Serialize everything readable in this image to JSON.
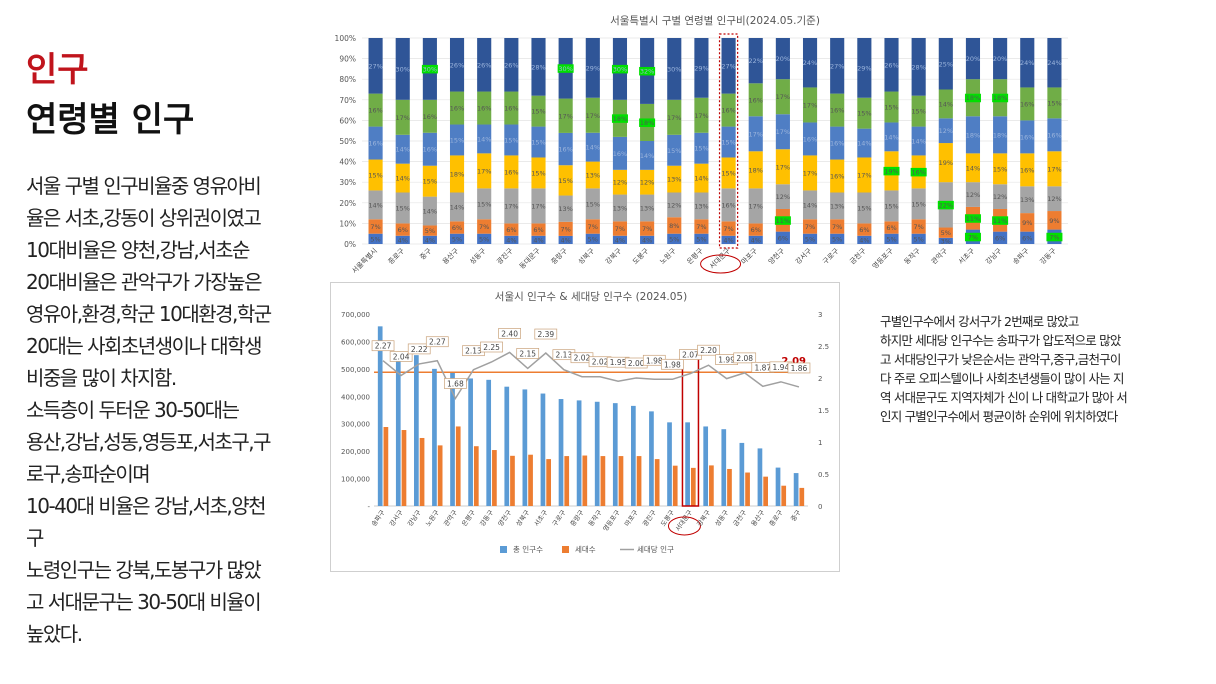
{
  "page": {
    "title": "인구",
    "subtitle": "연령별 인구",
    "left_lines": [
      "서울 구별 인구비율중 영유아비",
      "율은 서초,강동이 상위권이였고",
      "10대비율은 양천,강남,서초순",
      "20대비율은 관악구가 가장높은",
      "영유아,환경,학군 10대환경,학군",
      "20대는 사회초년생이나 대학생",
      "비중을 많이 차지함.",
      "소득층이 두터운 30-50대는",
      "용산,강남,성동,영등포,서초구,구",
      "로구,송파순이며",
      "10-40대 비율은 강남,서초,양천",
      "구",
      "노령인구는 강북,도봉구가 많았",
      "고 서대문구는 30-50대 비율이",
      "높았다."
    ],
    "right_lines": [
      "구별인구수에서 강서구가 2번째로 많았고",
      "하지만 세대당 인구수는 송파구가 압도적으로 많았",
      "고 서대당인구가 낮은순서는 관악구,중구,금천구이",
      "다 주로 오피스텔이나 사회초년생들이 많이 사는 지",
      "역 서대문구도 지역자체가 신이 나 대학교가 많아 서",
      "인지 구별인구수에서 평균이하 순위에 위치하였다"
    ]
  },
  "colors": {
    "age_0_9": "#4472c4",
    "age_10s": "#ed7d31",
    "age_20s": "#a5a5a5",
    "age_30s": "#ffc000",
    "age_40s": "#4f7ec4",
    "age_50s": "#70ad47",
    "age_60plus": "#2f5597",
    "highlight_label": "#00e000",
    "highlight_box": "#c00000",
    "bar_pop": "#5b9bd5",
    "bar_household": "#ed7d31",
    "line_per_household": "#a0a0a0"
  },
  "chart_data": [
    {
      "type": "bar",
      "stacked": true,
      "title": "서울특별시 구별 연령별 인구비(2024.05.기준)",
      "y_tick_labels": [
        "0%",
        "10%",
        "20%",
        "30%",
        "40%",
        "50%",
        "60%",
        "70%",
        "80%",
        "90%",
        "100%"
      ],
      "ylim": [
        0,
        100
      ],
      "categories": [
        "서울특별시",
        "종로구",
        "중구",
        "용산구",
        "성동구",
        "광진구",
        "동대문구",
        "중랑구",
        "성북구",
        "강북구",
        "도봉구",
        "노원구",
        "은평구",
        "서대문구",
        "마포구",
        "양천구",
        "강서구",
        "구로구",
        "금천구",
        "영등포구",
        "동작구",
        "관악구",
        "서초구",
        "강남구",
        "송파구",
        "강동구"
      ],
      "highlight_category": "서대문구",
      "series": [
        {
          "values": [
            5,
            4,
            4,
            5,
            5,
            4,
            4,
            4,
            5,
            4,
            4,
            5,
            5,
            4,
            4,
            6,
            5,
            5,
            4,
            5,
            5,
            3,
            7,
            6,
            6,
            7
          ]
        },
        {
          "values": [
            7,
            6,
            5,
            6,
            7,
            6,
            6,
            7,
            7,
            7,
            7,
            8,
            7,
            7,
            6,
            11,
            7,
            7,
            6,
            6,
            7,
            5,
            11,
            11,
            9,
            9
          ]
        },
        {
          "values": [
            14,
            15,
            14,
            14,
            15,
            17,
            17,
            13,
            15,
            13,
            13,
            12,
            13,
            16,
            17,
            12,
            14,
            13,
            15,
            15,
            15,
            22,
            12,
            12,
            13,
            12
          ]
        },
        {
          "values": [
            15,
            14,
            15,
            18,
            17,
            16,
            15,
            15,
            13,
            12,
            12,
            13,
            14,
            15,
            18,
            17,
            17,
            16,
            17,
            19,
            16,
            19,
            14,
            15,
            16,
            17
          ]
        },
        {
          "values": [
            16,
            14,
            16,
            15,
            14,
            15,
            15,
            16,
            14,
            16,
            14,
            15,
            15,
            15,
            17,
            17,
            16,
            16,
            14,
            14,
            14,
            12,
            18,
            18,
            16,
            16
          ]
        },
        {
          "values": [
            16,
            17,
            16,
            16,
            16,
            16,
            15,
            17,
            17,
            18,
            18,
            17,
            17,
            16,
            16,
            17,
            17,
            16,
            15,
            15,
            15,
            14,
            18,
            18,
            16,
            15
          ]
        },
        {
          "values": [
            27,
            30,
            30,
            26,
            26,
            26,
            28,
            30,
            29,
            30,
            32,
            30,
            29,
            27,
            22,
            20,
            24,
            27,
            29,
            26,
            28,
            25,
            20,
            20,
            24,
            24
          ]
        }
      ],
      "value_labels": [
        [
          "5%",
          "4%",
          "4%",
          "5%",
          "5%",
          "4%",
          "4%",
          "4%",
          "5%",
          "4%",
          "4%",
          "5%",
          "5%",
          "4%",
          "4%",
          "6%",
          "5%",
          "5%",
          "4%",
          "5%",
          "5%",
          "3%",
          "7%",
          "6%",
          "6%",
          "7%"
        ],
        [
          "7%",
          "6%",
          "5%",
          "6%",
          "7%",
          "6%",
          "6%",
          "7%",
          "7%",
          "7%",
          "7%",
          "8%",
          "7%",
          "7%",
          "6%",
          "11%",
          "7%",
          "7%",
          "6%",
          "6%",
          "7%",
          "5%",
          "11%",
          "11%",
          "9%",
          "9%"
        ],
        [
          "14%",
          "15%",
          "14%",
          "14%",
          "15%",
          "17%",
          "17%",
          "13%",
          "15%",
          "13%",
          "13%",
          "12%",
          "13%",
          "16%",
          "17%",
          "12%",
          "14%",
          "13%",
          "15%",
          "15%",
          "15%",
          "22%",
          "12%",
          "12%",
          "13%",
          "12%"
        ],
        [
          "15%",
          "14%",
          "15%",
          "18%",
          "17%",
          "16%",
          "15%",
          "15%",
          "13%",
          "12%",
          "12%",
          "13%",
          "14%",
          "15%",
          "18%",
          "17%",
          "17%",
          "16%",
          "17%",
          "19%",
          "16%",
          "19%",
          "14%",
          "15%",
          "16%",
          "17%"
        ],
        [
          "16%",
          "14%",
          "16%",
          "15%",
          "14%",
          "15%",
          "15%",
          "16%",
          "14%",
          "16%",
          "14%",
          "15%",
          "15%",
          "15%",
          "17%",
          "17%",
          "16%",
          "16%",
          "14%",
          "14%",
          "14%",
          "12%",
          "18%",
          "18%",
          "16%",
          "16%"
        ],
        [
          "16%",
          "17%",
          "16%",
          "16%",
          "16%",
          "16%",
          "15%",
          "17%",
          "17%",
          "18%",
          "18%",
          "17%",
          "17%",
          "16%",
          "16%",
          "17%",
          "17%",
          "16%",
          "15%",
          "15%",
          "15%",
          "14%",
          "18%",
          "18%",
          "16%",
          "15%"
        ],
        [
          "27%",
          "30%",
          "30%",
          "26%",
          "26%",
          "26%",
          "28%",
          "30%",
          "29%",
          "30%",
          "32%",
          "30%",
          "29%",
          "27%",
          "22%",
          "20%",
          "24%",
          "27%",
          "29%",
          "26%",
          "28%",
          "25%",
          "20%",
          "20%",
          "24%",
          "24%"
        ]
      ],
      "green_highlights": [
        [
          0,
          22
        ],
        [
          1,
          15
        ],
        [
          1,
          22
        ],
        [
          1,
          23
        ],
        [
          2,
          21
        ],
        [
          3,
          19
        ],
        [
          3,
          20
        ],
        [
          5,
          9
        ],
        [
          5,
          10
        ],
        [
          5,
          22
        ],
        [
          5,
          23
        ],
        [
          6,
          2
        ],
        [
          6,
          7
        ],
        [
          6,
          9
        ],
        [
          6,
          10
        ],
        [
          0,
          25
        ]
      ],
      "grid": true,
      "legend": "none"
    },
    {
      "type": "bar",
      "title": "서울시 인구수 & 세대당 인구수 (2024.05)",
      "y_tick_labels": [
        "-",
        "100,000",
        "200,000",
        "300,000",
        "400,000",
        "500,000",
        "600,000",
        "700,000"
      ],
      "y2_tick_labels": [
        "0",
        "0.5",
        "1",
        "1.5",
        "2",
        "2.5",
        "3"
      ],
      "ylim": [
        0,
        700000
      ],
      "y2lim": [
        0,
        3
      ],
      "categories": [
        "송파구",
        "강서구",
        "강남구",
        "노원구",
        "관악구",
        "은평구",
        "강동구",
        "양천구",
        "성북구",
        "서초구",
        "구로구",
        "중랑구",
        "동작구",
        "영등포구",
        "마포구",
        "광진구",
        "도봉구",
        "서대문구",
        "강북구",
        "성동구",
        "금천구",
        "용산구",
        "종로구",
        "중구"
      ],
      "highlight_category": "서대문구",
      "series": [
        {
          "name": "총 인구수",
          "type": "bar",
          "values": [
            655000,
            560000,
            550000,
            500000,
            485000,
            465000,
            460000,
            435000,
            425000,
            410000,
            390000,
            385000,
            380000,
            375000,
            365000,
            345000,
            305000,
            305000,
            290000,
            280000,
            230000,
            210000,
            140000,
            120000
          ]
        },
        {
          "name": "세대수",
          "type": "bar",
          "values": [
            288000,
            277000,
            248000,
            221000,
            290000,
            218000,
            204000,
            183000,
            187000,
            171000,
            182000,
            184000,
            182000,
            182000,
            182000,
            171000,
            147000,
            139000,
            148000,
            135000,
            122000,
            107000,
            74000,
            66000
          ]
        },
        {
          "name": "세대당 인구",
          "type": "line",
          "values": [
            2.27,
            2.04,
            2.22,
            2.27,
            1.68,
            2.13,
            2.25,
            2.4,
            2.15,
            2.39,
            2.13,
            2.02,
            2.02,
            1.95,
            2.0,
            1.98,
            1.98,
            2.07,
            2.2,
            1.99,
            2.08,
            1.87,
            1.94,
            1.86
          ]
        }
      ],
      "line_labels": [
        "2.27",
        "2.04",
        "2.22",
        "2.27",
        "1.68",
        "2.13",
        "2.25",
        "2.40",
        "2.15",
        "2.39",
        "2.13",
        "2.02",
        "2.02",
        "1.95",
        "2.00",
        "1.98",
        "1.98",
        "2.07",
        "2.20",
        "1.99",
        "2.08",
        "1.87",
        "1.94",
        "1.86"
      ],
      "reference_line": {
        "value": 2.09,
        "label": "2.09"
      },
      "legend": "bottom",
      "grid": false
    }
  ]
}
